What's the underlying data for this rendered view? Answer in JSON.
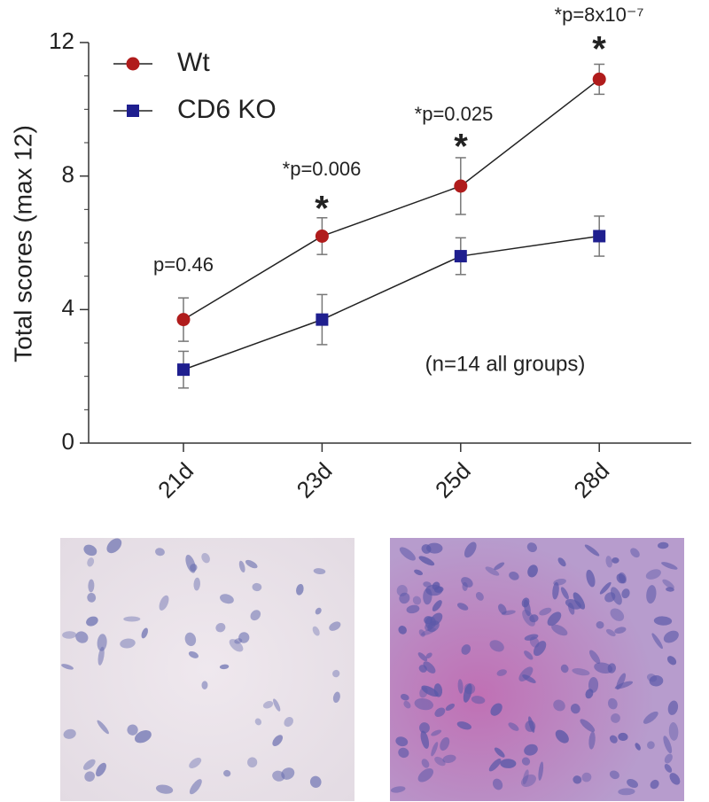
{
  "chart_data": {
    "type": "line",
    "y_label": "Total scores (max 12)",
    "categories": [
      "21d",
      "23d",
      "25d",
      "28d"
    ],
    "series": [
      {
        "name": "Wt",
        "color": "#b01c1c",
        "marker": "circle",
        "values": [
          3.7,
          6.2,
          7.7,
          10.9
        ],
        "errors": [
          0.65,
          0.55,
          0.85,
          0.45
        ]
      },
      {
        "name": "CD6 KO",
        "color": "#1f1f8f",
        "marker": "square",
        "values": [
          2.2,
          3.7,
          5.6,
          6.2
        ],
        "errors": [
          0.55,
          0.75,
          0.55,
          0.6
        ]
      }
    ],
    "p_values": [
      "p=0.46",
      "*p=0.006",
      "*p=0.025",
      "*p=8x10⁻⁷"
    ],
    "significance": [
      null,
      "*",
      "*",
      "*"
    ],
    "note": "(n=14 all groups)",
    "ylim": [
      0,
      12
    ],
    "yticks": [
      0,
      4,
      8,
      12
    ],
    "grid": false,
    "legend": "top-left"
  }
}
